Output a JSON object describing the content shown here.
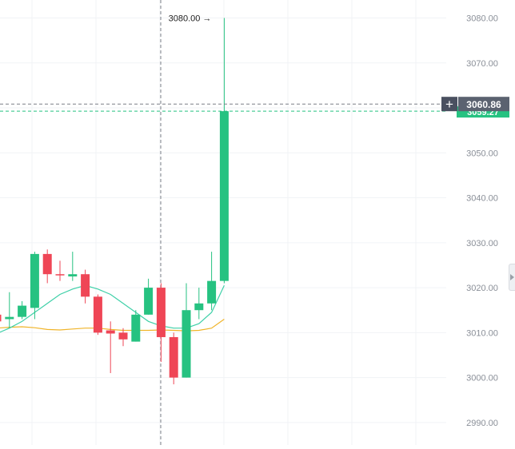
{
  "chart_data": {
    "type": "candlestick",
    "ylim": [
      2985,
      3084
    ],
    "grid": true,
    "y_ticks": [
      "2990.00",
      "3000.00",
      "3010.00",
      "3020.00",
      "3030.00",
      "3040.00",
      "3050.00",
      "3060.00",
      "3070.00",
      "3080.00"
    ],
    "candles": [
      {
        "o": 3014.0,
        "h": 3015.0,
        "l": 3012.0,
        "c": 3012.5
      },
      {
        "o": 3013.0,
        "h": 3019.0,
        "l": 3011.0,
        "c": 3013.5
      },
      {
        "o": 3013.5,
        "h": 3017.0,
        "l": 3013.0,
        "c": 3016.0
      },
      {
        "o": 3015.5,
        "h": 3028.0,
        "l": 3013.0,
        "c": 3027.5
      },
      {
        "o": 3027.5,
        "h": 3028.5,
        "l": 3021.0,
        "c": 3023.0
      },
      {
        "o": 3023.0,
        "h": 3026.0,
        "l": 3021.5,
        "c": 3022.8
      },
      {
        "o": 3022.5,
        "h": 3028.0,
        "l": 3021.5,
        "c": 3023.0
      },
      {
        "o": 3023.0,
        "h": 3024.0,
        "l": 3016.5,
        "c": 3018.0
      },
      {
        "o": 3018.0,
        "h": 3018.5,
        "l": 3009.5,
        "c": 3010.0
      },
      {
        "o": 3010.5,
        "h": 3012.5,
        "l": 3001.0,
        "c": 3009.8
      },
      {
        "o": 3010.0,
        "h": 3011.0,
        "l": 3007.0,
        "c": 3008.5
      },
      {
        "o": 3008.0,
        "h": 3015.0,
        "l": 3008.0,
        "c": 3014.0
      },
      {
        "o": 3014.0,
        "h": 3022.0,
        "l": 3014.0,
        "c": 3020.0
      },
      {
        "o": 3020.0,
        "h": 3021.0,
        "l": 3003.5,
        "c": 3009.0
      },
      {
        "o": 3009.0,
        "h": 3010.0,
        "l": 2998.5,
        "c": 3000.0
      },
      {
        "o": 3000.0,
        "h": 3021.0,
        "l": 3000.0,
        "c": 3015.0
      },
      {
        "o": 3015.0,
        "h": 3020.0,
        "l": 3013.0,
        "c": 3016.5
      },
      {
        "o": 3016.5,
        "h": 3028.0,
        "l": 3015.0,
        "c": 3021.5
      },
      {
        "o": 3021.5,
        "h": 3080.0,
        "l": 3021.0,
        "c": 3059.27
      }
    ],
    "ma_fast": [
      3009.8,
      3011.0,
      3012.5,
      3014.5,
      3016.5,
      3018.5,
      3019.7,
      3020.5,
      3019.7,
      3018.5,
      3016.5,
      3014.5,
      3012.5,
      3011.5,
      3011.0,
      3011.0,
      3012.0,
      3014.5,
      3020.5
    ],
    "ma_slow": [
      3011.0,
      3011.2,
      3011.3,
      3011.1,
      3010.7,
      3010.6,
      3010.8,
      3011.0,
      3011.0,
      3010.7,
      3010.5,
      3010.5,
      3010.5,
      3010.6,
      3010.5,
      3010.4,
      3010.5,
      3011.0,
      3013.0
    ],
    "colors": {
      "up": "#26c281",
      "down": "#ef4656",
      "ma_fast": "#3fd0a8",
      "ma_slow": "#f0b429",
      "grid": "#f1f3f6",
      "tick_text": "#8a8f98",
      "crosshair": "#7b7f87",
      "price_tag": "#5b6270",
      "current_tag": "#26c281"
    },
    "high_annotation": {
      "label": "3080.00",
      "value": 3080.0,
      "arrow": "→"
    },
    "crosshair": {
      "price_label": "3060.86",
      "price": 3060.86,
      "plus_icon": "+"
    },
    "last_price": {
      "label": "3059.27",
      "value": 3059.27
    }
  }
}
